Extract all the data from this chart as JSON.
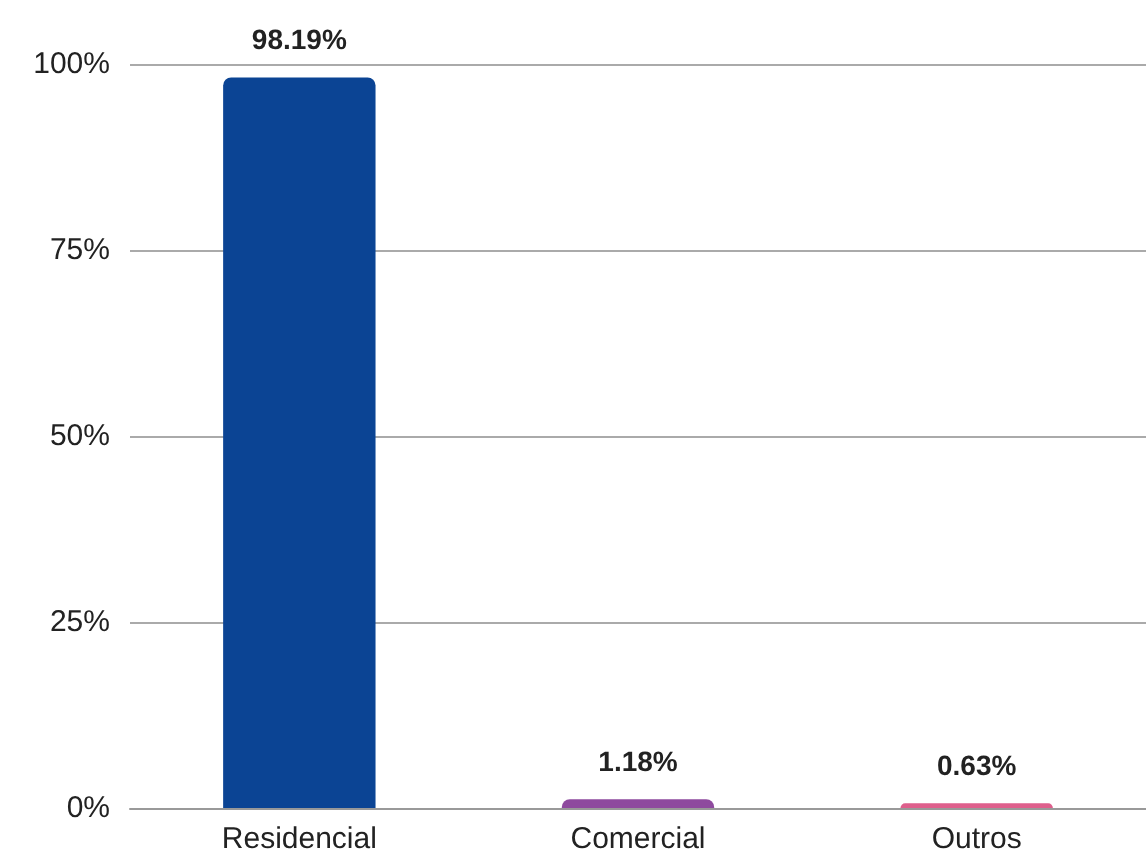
{
  "chart_data": {
    "type": "bar",
    "categories": [
      "Residencial",
      "Comercial",
      "Outros"
    ],
    "values": [
      98.19,
      1.18,
      0.63
    ],
    "colors": [
      "#0b4494",
      "#8e4a9e",
      "#de5f8c"
    ],
    "value_labels": [
      "98.19%",
      "1.18%",
      "0.63%"
    ],
    "ylim": [
      0,
      100
    ],
    "yticks": [
      {
        "value": 0,
        "label": "0%"
      },
      {
        "value": 25,
        "label": "25%"
      },
      {
        "value": 50,
        "label": "50%"
      },
      {
        "value": 75,
        "label": "75%"
      },
      {
        "value": 100,
        "label": "100%"
      }
    ],
    "grid": "y"
  }
}
